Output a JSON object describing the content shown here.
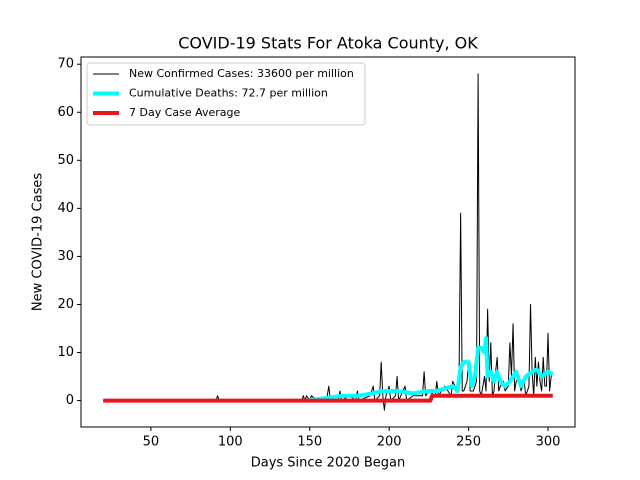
{
  "chart_data": {
    "type": "line",
    "title": "COVID-19 Stats For Atoka County, OK",
    "x_label": "Days Since 2020 Began",
    "y_label": "New COVID-19 Cases",
    "xlim": [
      6,
      317
    ],
    "ylim": [
      -5.5,
      71.5
    ],
    "xticks": [
      50,
      100,
      150,
      200,
      250,
      300
    ],
    "yticks": [
      0,
      10,
      20,
      30,
      40,
      50,
      60,
      70
    ],
    "legend": "upper left",
    "series": [
      {
        "name": "New Confirmed Cases: 33600 per million",
        "color": "#000000",
        "width": 1,
        "x": [
          20,
          90,
          91,
          92,
          93,
          145,
          146,
          147,
          148,
          150,
          151,
          155,
          160,
          161,
          162,
          163,
          168,
          169,
          170,
          175,
          179,
          180,
          181,
          188,
          190,
          191,
          194,
          195,
          196,
          197,
          198,
          200,
          201,
          204,
          205,
          206,
          210,
          211,
          215,
          221,
          222,
          223,
          225,
          229,
          230,
          231,
          235,
          239,
          240,
          243,
          244,
          245,
          246,
          247,
          249,
          250,
          251,
          253,
          255,
          256,
          257,
          258,
          260,
          261,
          262,
          263,
          264,
          265,
          266,
          267,
          268,
          269,
          270,
          272,
          273,
          275,
          276,
          277,
          278,
          279,
          280,
          282,
          283,
          285,
          286,
          288,
          289,
          290,
          291,
          292,
          293,
          294,
          295,
          296,
          297,
          298,
          299,
          300,
          301,
          302,
          303
        ],
        "values": [
          0,
          0,
          0,
          1,
          0,
          0,
          1,
          0,
          1,
          0,
          1,
          0,
          0,
          1,
          3,
          0,
          0,
          2,
          0,
          1,
          0,
          2,
          0,
          1,
          3,
          0,
          1,
          8,
          1,
          -2,
          1,
          3,
          0,
          1,
          5,
          0,
          3,
          0,
          1,
          1,
          6,
          1,
          2,
          1,
          4,
          1,
          3,
          1,
          4,
          2,
          5,
          39,
          2,
          2,
          4,
          8,
          2,
          2,
          4,
          68,
          2,
          1,
          5,
          2,
          19,
          4,
          12,
          1,
          2,
          6,
          9,
          2,
          3,
          4,
          2,
          3,
          12,
          5,
          16,
          2,
          4,
          5,
          2,
          4,
          1,
          3,
          20,
          6,
          1,
          9,
          3,
          8,
          4,
          2,
          9,
          3,
          3,
          14,
          2,
          5,
          6
        ]
      },
      {
        "name": "Cumulative Deaths: 72.7 per million",
        "color": "#00ffff",
        "width": 4,
        "x": [
          148,
          160,
          170,
          180,
          190,
          195,
          205,
          215,
          225,
          230,
          240,
          243,
          245,
          247,
          250,
          252,
          254,
          256,
          258,
          260,
          261,
          262,
          264,
          266,
          268,
          270,
          273,
          276,
          280,
          283,
          286,
          290,
          293,
          296,
          300,
          303
        ],
        "values": [
          0,
          0.5,
          1,
          1,
          1.5,
          2,
          2,
          1.5,
          2,
          2,
          3,
          2,
          7,
          8,
          8,
          3,
          5,
          11,
          11,
          10,
          13,
          5,
          6,
          4,
          6,
          4,
          3,
          4,
          6,
          3,
          5,
          6,
          6.5,
          5,
          6,
          5.5
        ]
      },
      {
        "name": "7 Day Case Average",
        "color": "#e8141c",
        "width": 4,
        "x": [
          20,
          226,
          227,
          303
        ],
        "values": [
          0,
          0,
          1,
          1
        ]
      }
    ]
  }
}
